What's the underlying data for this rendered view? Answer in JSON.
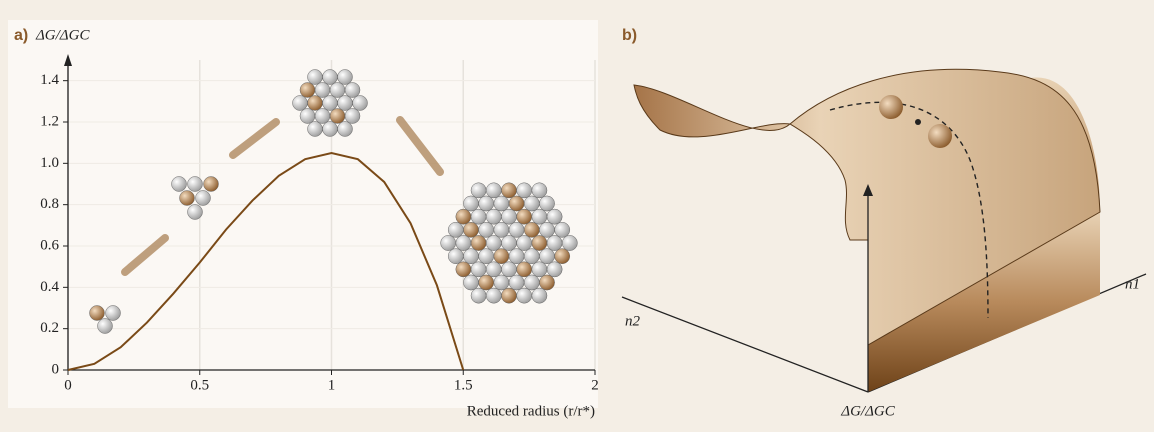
{
  "chart_data": {
    "type": "line",
    "panel_label": "a)",
    "ylabel": "ΔG/ΔGC",
    "xlabel": "Reduced radius (r/r*)",
    "x": [
      0,
      0.1,
      0.2,
      0.3,
      0.4,
      0.5,
      0.6,
      0.7,
      0.8,
      0.9,
      1.0,
      1.1,
      1.2,
      1.3,
      1.4,
      1.5
    ],
    "values": [
      0,
      0.03,
      0.11,
      0.23,
      0.37,
      0.52,
      0.68,
      0.82,
      0.94,
      1.02,
      1.05,
      1.02,
      0.91,
      0.71,
      0.41,
      0
    ],
    "color": "#7a4a17",
    "xlim": [
      0,
      2
    ],
    "xticks": [
      0,
      0.5,
      1,
      1.5,
      2
    ],
    "ylim": [
      0,
      1.5
    ],
    "yticks": [
      0,
      0.2,
      0.4,
      0.6,
      0.8,
      {
        "value": 1,
        "label": "1.0"
      },
      1.2,
      1.4
    ],
    "grid": true
  },
  "panel_b": {
    "label": "b)",
    "axis_n1": "n1",
    "axis_n2": "n2",
    "axis_vertical": "ΔG/ΔGC"
  }
}
